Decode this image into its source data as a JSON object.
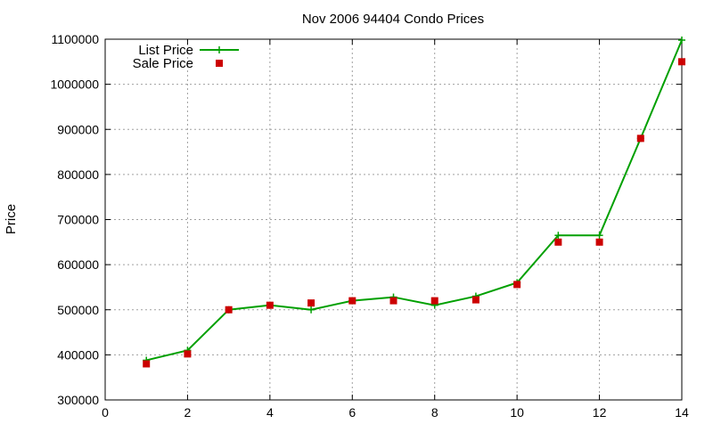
{
  "chart_data": {
    "type": "line",
    "title": "Nov 2006 94404 Condo Prices",
    "xlabel": "",
    "ylabel": "Price",
    "xlim": [
      0,
      14
    ],
    "ylim": [
      300000,
      1100000
    ],
    "x_ticks": [
      0,
      2,
      4,
      6,
      8,
      10,
      12,
      14
    ],
    "y_ticks": [
      300000,
      400000,
      500000,
      600000,
      700000,
      800000,
      900000,
      1000000,
      1100000
    ],
    "grid": true,
    "legend_position": "top-left",
    "series": [
      {
        "name": "List Price",
        "style": "line-points",
        "marker": "plus",
        "color": "#00a000",
        "x": [
          1,
          2,
          3,
          4,
          5,
          6,
          7,
          8,
          9,
          10,
          11,
          12,
          13,
          14
        ],
        "y": [
          388000,
          410000,
          500000,
          510000,
          500000,
          520000,
          528000,
          510000,
          530000,
          560000,
          665000,
          665000,
          880000,
          1098000
        ]
      },
      {
        "name": "Sale Price",
        "style": "points",
        "marker": "square",
        "color": "#cc0000",
        "x": [
          1,
          2,
          3,
          4,
          5,
          6,
          7,
          8,
          9,
          10,
          11,
          12,
          13,
          14
        ],
        "y": [
          380000,
          402000,
          500000,
          510000,
          515000,
          520000,
          520000,
          520000,
          522000,
          556000,
          650000,
          650000,
          880000,
          1050000
        ]
      }
    ]
  }
}
